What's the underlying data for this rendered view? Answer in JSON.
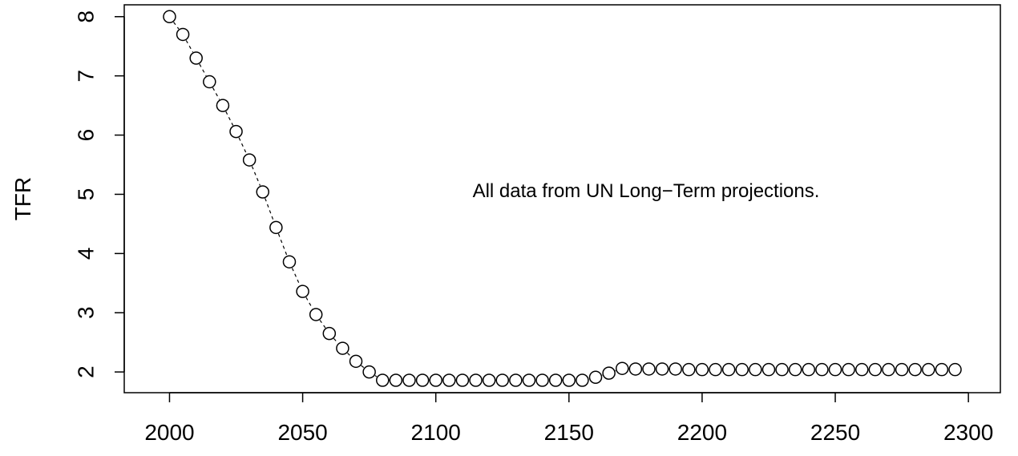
{
  "chart_data": {
    "type": "scatter",
    "title": "",
    "xlabel": "",
    "ylabel": "TFR",
    "annotation": "All data from UN Long−Term projections.",
    "xlim": [
      1983,
      2312
    ],
    "ylim": [
      1.65,
      8.2
    ],
    "x_ticks": [
      2000,
      2050,
      2100,
      2150,
      2200,
      2250,
      2300
    ],
    "y_ticks": [
      2,
      3,
      4,
      5,
      6,
      7,
      8
    ],
    "grid": false,
    "legend": "none",
    "marker": "open-circle",
    "connector": "dashed",
    "colors": {
      "marker": "#000000",
      "axis": "#000000",
      "background": "#ffffff"
    },
    "series": [
      {
        "x": [
          2000,
          2005,
          2010,
          2015,
          2020,
          2025,
          2030,
          2035,
          2040,
          2045,
          2050,
          2055,
          2060,
          2065,
          2070,
          2075,
          2080,
          2085,
          2090,
          2095,
          2100,
          2105,
          2110,
          2115,
          2120,
          2125,
          2130,
          2135,
          2140,
          2145,
          2150,
          2155,
          2160,
          2165,
          2170,
          2175,
          2180,
          2185,
          2190,
          2195,
          2200,
          2205,
          2210,
          2215,
          2220,
          2225,
          2230,
          2235,
          2240,
          2245,
          2250,
          2255,
          2260,
          2265,
          2270,
          2275,
          2280,
          2285,
          2290,
          2295
        ],
        "y": [
          8.0,
          7.7,
          7.3,
          6.9,
          6.5,
          6.06,
          5.58,
          5.04,
          4.44,
          3.86,
          3.36,
          2.97,
          2.65,
          2.4,
          2.18,
          2.0,
          1.86,
          1.86,
          1.86,
          1.86,
          1.86,
          1.86,
          1.86,
          1.86,
          1.86,
          1.86,
          1.86,
          1.86,
          1.86,
          1.86,
          1.86,
          1.86,
          1.91,
          1.98,
          2.06,
          2.05,
          2.05,
          2.05,
          2.05,
          2.04,
          2.04,
          2.04,
          2.04,
          2.04,
          2.04,
          2.04,
          2.04,
          2.04,
          2.04,
          2.04,
          2.04,
          2.04,
          2.04,
          2.04,
          2.04,
          2.04,
          2.04,
          2.04,
          2.04,
          2.04
        ]
      }
    ]
  }
}
